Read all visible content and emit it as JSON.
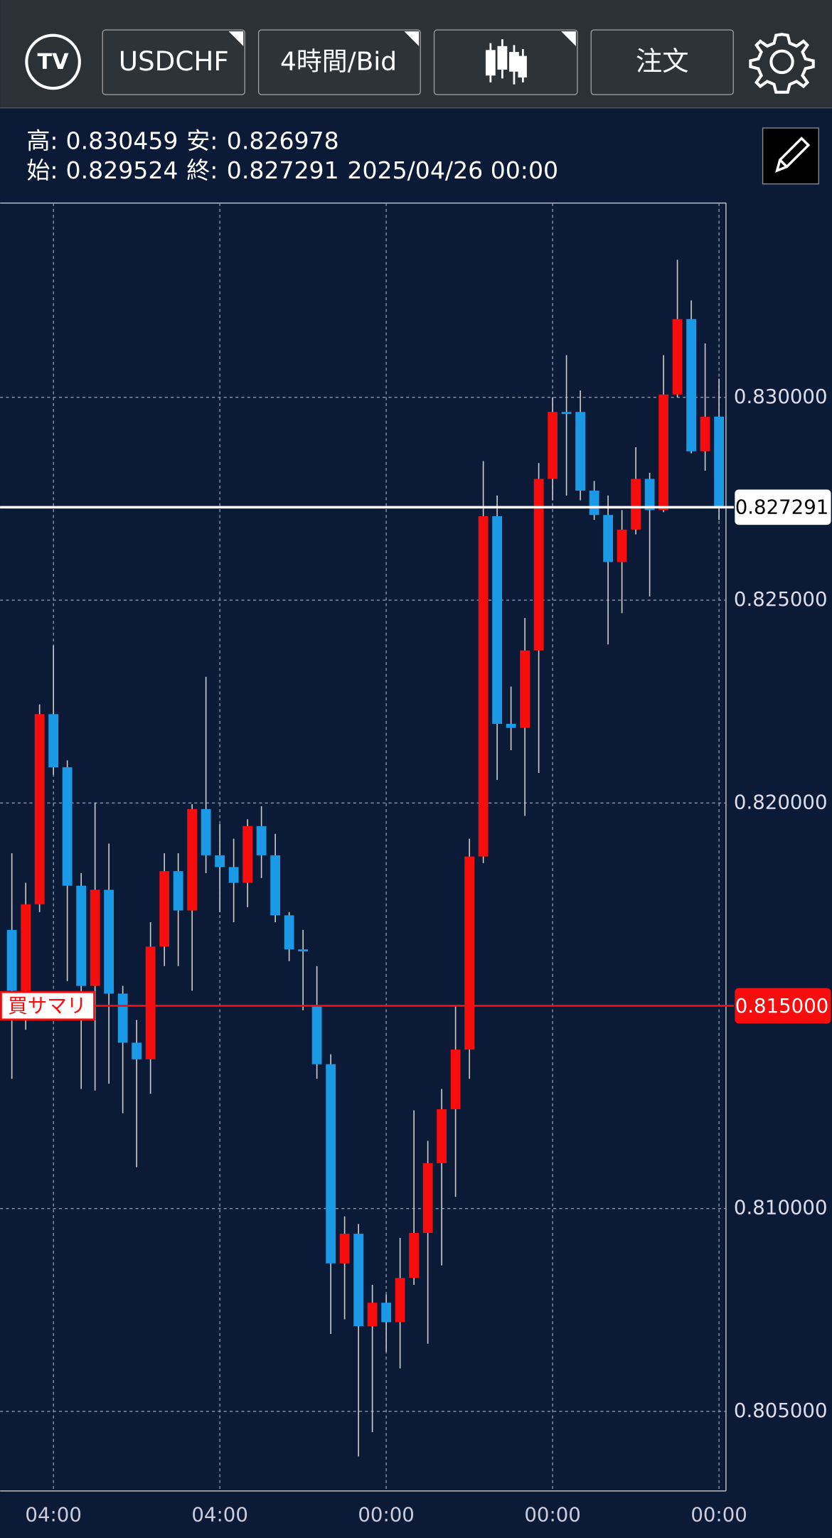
{
  "toolbar": {
    "symbol": "USDCHF",
    "timeframe": "4時間/Bid",
    "order": "注文"
  },
  "info": {
    "high_label": "高:",
    "low_label": "安:",
    "open_label": "始:",
    "close_label": "終:",
    "datetime": "2025/04/26 00:00"
  },
  "chart_data": {
    "type": "candlestick",
    "categories": [
      null,
      null,
      null,
      "04:00",
      null,
      null,
      null,
      null,
      null,
      null,
      null,
      null,
      null,
      null,
      null,
      "04:00",
      null,
      null,
      null,
      null,
      null,
      null,
      null,
      null,
      null,
      null,
      null,
      "00:00",
      null,
      null,
      null,
      null,
      null,
      null,
      null,
      null,
      null,
      null,
      null,
      "00:00",
      null,
      null,
      null,
      null,
      null,
      null,
      null,
      null,
      null,
      null,
      null,
      "00:00"
    ],
    "open": [
      0.81687,
      0.81537,
      0.8175,
      0.82219,
      0.82088,
      0.81796,
      0.81549,
      0.81786,
      0.8153,
      0.81409,
      0.81368,
      0.81646,
      0.81832,
      0.81735,
      0.81985,
      0.81871,
      0.81842,
      0.81803,
      0.81943,
      0.81871,
      0.81723,
      0.81639,
      0.81501,
      0.81356,
      0.80865,
      0.80938,
      0.8071,
      0.80768,
      0.8072,
      0.80829,
      0.8094,
      0.81112,
      0.81245,
      0.81392,
      0.81868,
      0.82707,
      0.82195,
      0.82185,
      0.82376,
      0.82799,
      0.82964,
      0.82964,
      0.8277,
      0.8271,
      0.82594,
      0.82674,
      0.82799,
      0.82722,
      0.83007,
      0.83193,
      0.82867,
      0.829524
    ],
    "high": [
      0.81876,
      0.81803,
      0.82243,
      0.82388,
      0.82105,
      0.81827,
      0.82001,
      0.819,
      0.81549,
      0.81465,
      0.81706,
      0.81876,
      0.81876,
      0.81997,
      0.82311,
      0.81948,
      0.81912,
      0.8196,
      0.81992,
      0.81924,
      0.81731,
      0.81687,
      0.81598,
      0.8138,
      0.80981,
      0.80962,
      0.80812,
      0.80788,
      0.80928,
      0.81242,
      0.81167,
      0.81295,
      0.81501,
      0.81912,
      0.82843,
      0.82758,
      0.82287,
      0.82456,
      0.82838,
      0.83,
      0.83104,
      0.83017,
      0.82794,
      0.82758,
      0.82722,
      0.82877,
      0.82814,
      0.83104,
      0.83339,
      0.83239,
      0.83133,
      0.830459
    ],
    "low": [
      0.8132,
      0.81441,
      0.81731,
      0.82069,
      0.81561,
      0.81295,
      0.81291,
      0.81308,
      0.81235,
      0.81102,
      0.81283,
      0.81598,
      0.81598,
      0.81537,
      0.81827,
      0.81731,
      0.81706,
      0.81743,
      0.81815,
      0.81706,
      0.8161,
      0.81489,
      0.8132,
      0.80691,
      0.80727,
      0.80389,
      0.80449,
      0.80647,
      0.80606,
      0.80812,
      0.80667,
      0.8086,
      0.81029,
      0.8132,
      0.81852,
      0.82057,
      0.8213,
      0.81968,
      0.82074,
      0.82746,
      0.82758,
      0.82746,
      0.82698,
      0.82391,
      0.82468,
      0.82662,
      0.82509,
      0.82717,
      0.83,
      0.82862,
      0.82819,
      0.826978
    ],
    "close": [
      0.81537,
      0.8175,
      0.82219,
      0.82088,
      0.81796,
      0.81549,
      0.81786,
      0.8153,
      0.81409,
      0.81368,
      0.81646,
      0.81832,
      0.81735,
      0.81985,
      0.81871,
      0.81842,
      0.81803,
      0.81943,
      0.81871,
      0.81723,
      0.81639,
      0.81634,
      0.81356,
      0.80865,
      0.80938,
      0.8071,
      0.80768,
      0.8072,
      0.80829,
      0.8094,
      0.81112,
      0.81245,
      0.81392,
      0.81868,
      0.82707,
      0.82195,
      0.82185,
      0.82376,
      0.82799,
      0.82964,
      0.82959,
      0.8277,
      0.8271,
      0.82594,
      0.82674,
      0.82799,
      0.82722,
      0.83007,
      0.83193,
      0.82867,
      0.82952,
      0.827291
    ],
    "up_color": "#f70d0d",
    "down_color": "#1a9ae6",
    "ylim": [
      0.80304,
      0.83479
    ],
    "yticks": [
      {
        "value": 0.805,
        "label": "0.805000"
      },
      {
        "value": 0.81,
        "label": "0.810000"
      },
      {
        "value": 0.82,
        "label": "0.820000"
      },
      {
        "value": 0.825,
        "label": "0.825000"
      },
      {
        "value": 0.83,
        "label": "0.830000"
      }
    ],
    "grid": true,
    "price_line": {
      "value": 0.827291,
      "label": "0.827291",
      "color": "#ffffff"
    },
    "position_line": {
      "name": "買サマリ",
      "value": 0.815,
      "label": "0.815000",
      "color": "#f70d0d"
    }
  }
}
